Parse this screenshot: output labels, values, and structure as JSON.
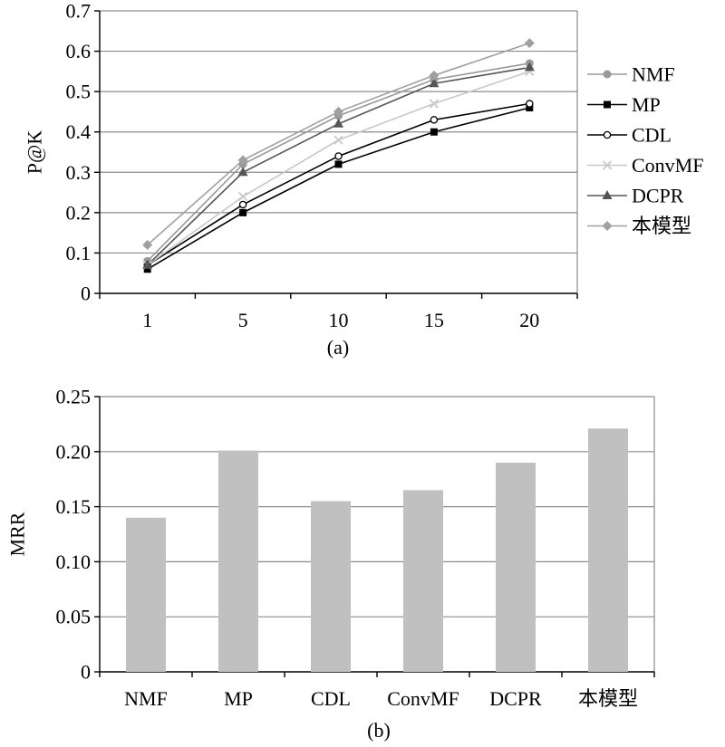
{
  "chart_data": [
    {
      "type": "line",
      "caption": "(a)",
      "ylabel": "P@K",
      "x": [
        "1",
        "5",
        "10",
        "15",
        "20"
      ],
      "ylim": [
        0,
        0.7
      ],
      "yticks": [
        "0",
        "0.1",
        "0.2",
        "0.3",
        "0.4",
        "0.5",
        "0.6",
        "0.7"
      ],
      "grid": true,
      "legend": "right",
      "series": [
        {
          "name": "NMF",
          "marker": "circle",
          "color": "#999999",
          "values": [
            0.08,
            0.32,
            0.44,
            0.53,
            0.57
          ]
        },
        {
          "name": "MP",
          "marker": "square",
          "color": "#000000",
          "values": [
            0.06,
            0.2,
            0.32,
            0.4,
            0.46
          ]
        },
        {
          "name": "CDL",
          "marker": "open-circle",
          "color": "#000000",
          "values": [
            0.07,
            0.22,
            0.34,
            0.43,
            0.47
          ]
        },
        {
          "name": "ConvMF",
          "marker": "x",
          "color": "#c8c8c8",
          "values": [
            0.07,
            0.24,
            0.38,
            0.47,
            0.55
          ]
        },
        {
          "name": "DCPR",
          "marker": "triangle",
          "color": "#555555",
          "values": [
            0.07,
            0.3,
            0.42,
            0.52,
            0.56
          ]
        },
        {
          "name": "本模型",
          "marker": "diamond",
          "color": "#a0a0a0",
          "values": [
            0.12,
            0.33,
            0.45,
            0.54,
            0.62
          ]
        }
      ]
    },
    {
      "type": "bar",
      "caption": "(b)",
      "ylabel": "MRR",
      "categories": [
        "NMF",
        "MP",
        "CDL",
        "ConvMF",
        "DCPR",
        "本模型"
      ],
      "values": [
        0.14,
        0.201,
        0.155,
        0.165,
        0.19,
        0.221
      ],
      "ylim": [
        0,
        0.25
      ],
      "yticks": [
        "0",
        "0.05",
        "0.10",
        "0.15",
        "0.20",
        "0.25"
      ],
      "color": "#c0c0c0",
      "grid": true
    }
  ]
}
